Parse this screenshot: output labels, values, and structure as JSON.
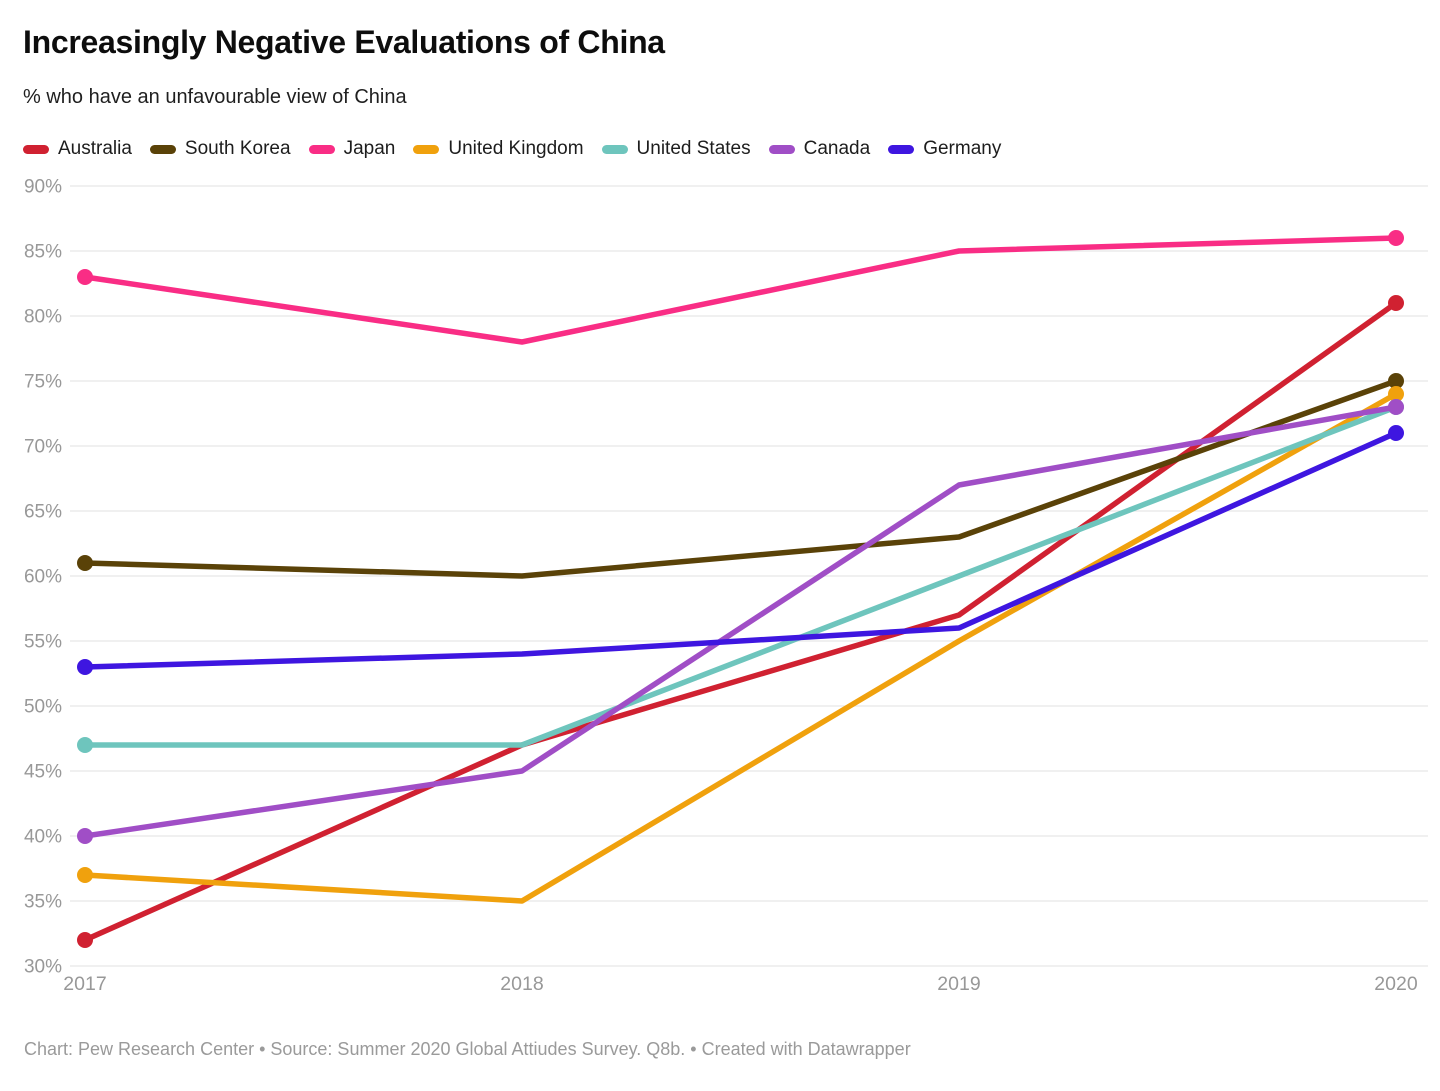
{
  "header": {
    "title": "Increasingly Negative Evaluations of China",
    "subtitle": "% who have an unfavourable view of China"
  },
  "chart_data": {
    "type": "line",
    "title": "Increasingly Negative Evaluations of China",
    "subtitle": "% who have an unfavourable view of China",
    "x": [
      "2017",
      "2018",
      "2019",
      "2020"
    ],
    "ylim": [
      30,
      90
    ],
    "y_tick_step": 5,
    "y_tick_suffix": "%",
    "grid": true,
    "legend_position": "top",
    "point_markers": "endpoints-only",
    "series": [
      {
        "name": "Australia",
        "color": "#d02131",
        "values": [
          32,
          47,
          57,
          81
        ]
      },
      {
        "name": "South Korea",
        "color": "#5a4208",
        "values": [
          61,
          60,
          63,
          75
        ]
      },
      {
        "name": "Japan",
        "color": "#f92d85",
        "values": [
          83,
          78,
          85,
          86
        ]
      },
      {
        "name": "United Kingdom",
        "color": "#f0a10d",
        "values": [
          37,
          35,
          55,
          74
        ]
      },
      {
        "name": "United States",
        "color": "#6ec5bd",
        "values": [
          47,
          47,
          60,
          73
        ]
      },
      {
        "name": "Canada",
        "color": "#a04ec6",
        "values": [
          40,
          45,
          67,
          73
        ]
      },
      {
        "name": "Germany",
        "color": "#3e16e0",
        "values": [
          53,
          54,
          56,
          71
        ]
      }
    ]
  },
  "footer": {
    "text": "Chart: Pew Research Center • Source: Summer 2020 Global Attiudes Survey. Q8b. • Created with Datawrapper"
  },
  "style": {
    "grid_color": "#e6e6e6",
    "tick_label_color": "#989898",
    "footer_color": "#9a9a9a"
  }
}
